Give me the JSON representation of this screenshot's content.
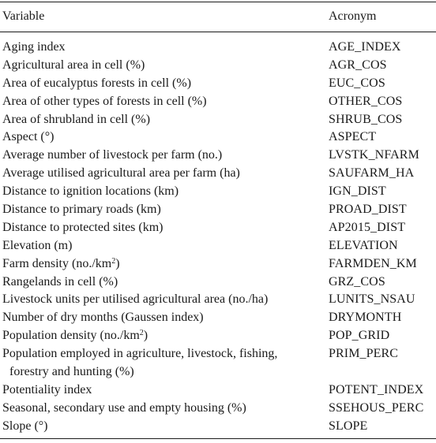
{
  "table": {
    "header": {
      "variable": "Variable",
      "acronym": "Acronym"
    },
    "rows": [
      {
        "variable": "Aging index",
        "acronym": "AGE_INDEX"
      },
      {
        "variable": "Agricultural area in cell (%)",
        "acronym": "AGR_COS"
      },
      {
        "variable": "Area of eucalyptus forests in cell (%)",
        "acronym": "EUC_COS"
      },
      {
        "variable": "Area of other types of forests in cell (%)",
        "acronym": "OTHER_COS"
      },
      {
        "variable": "Area of shrubland in cell (%)",
        "acronym": "SHRUB_COS"
      },
      {
        "variable": "Aspect (°)",
        "acronym": "ASPECT"
      },
      {
        "variable": "Average number of livestock per farm (no.)",
        "acronym": "LVSTK_NFARM"
      },
      {
        "variable": "Average utilised agricultural area per farm (ha)",
        "acronym": "SAUFARM_HA"
      },
      {
        "variable": "Distance to ignition locations (km)",
        "acronym": "IGN_DIST"
      },
      {
        "variable": "Distance to primary roads (km)",
        "acronym": "PROAD_DIST"
      },
      {
        "variable": "Distance to protected sites (km)",
        "acronym": "AP2015_DIST"
      },
      {
        "variable": "Elevation (m)",
        "acronym": "ELEVATION"
      },
      {
        "variable": "Farm density (no./km",
        "variable_sup": "2",
        "variable_tail": ")",
        "acronym": "FARMDEN_KM"
      },
      {
        "variable": "Rangelands in cell (%)",
        "acronym": "GRZ_COS"
      },
      {
        "variable": "Livestock units per utilised agricultural area (no./ha)",
        "acronym": "LUNITS_NSAU"
      },
      {
        "variable": "Number of dry months (Gaussen index)",
        "acronym": "DRYMONTH"
      },
      {
        "variable": "Population density (no./km",
        "variable_sup": "2",
        "variable_tail": ")",
        "acronym": "POP_GRID"
      },
      {
        "variable": "Population employed in agriculture, livestock, fishing,",
        "variable_line2": "forestry and hunting (%)",
        "acronym": "PRIM_PERC"
      },
      {
        "variable": "Potentiality index",
        "acronym": "POTENT_INDEX"
      },
      {
        "variable": "Seasonal, secondary use and empty housing (%)",
        "acronym": "SSEHOUS_PERC"
      },
      {
        "variable": "Slope (°)",
        "acronym": "SLOPE"
      }
    ]
  }
}
